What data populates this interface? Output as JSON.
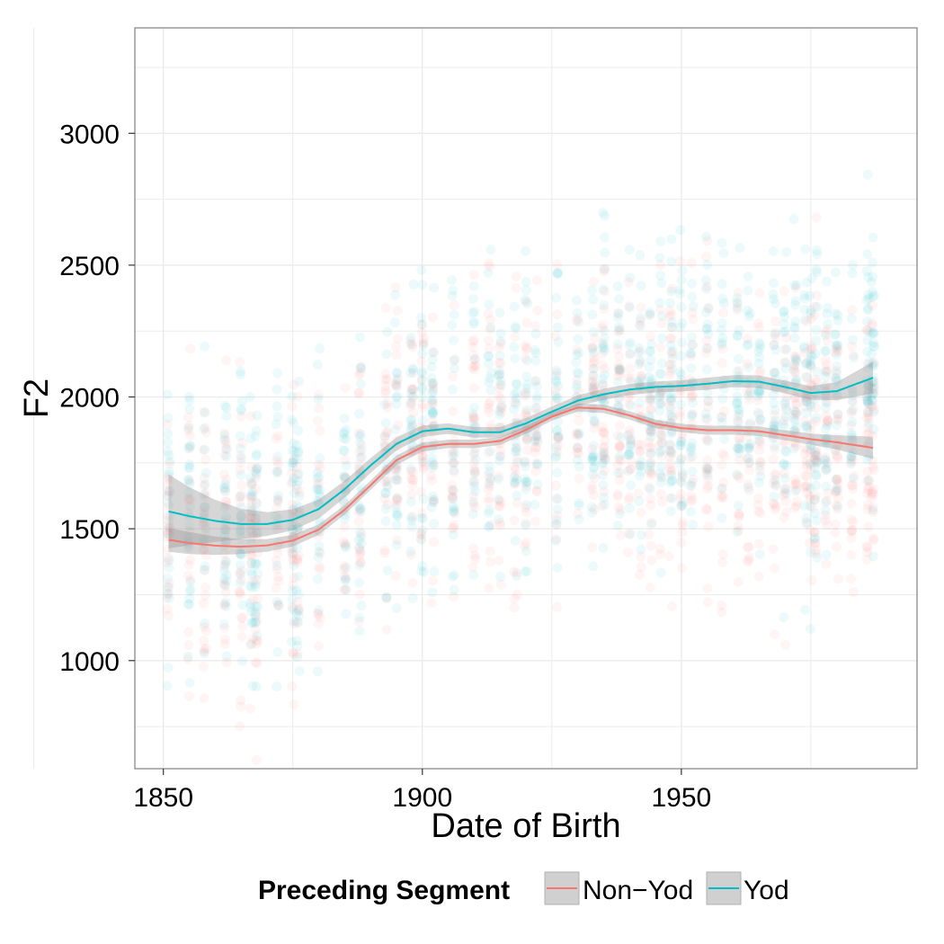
{
  "chart_data": {
    "type": "scatter",
    "xlabel": "Date of Birth",
    "ylabel": "F2",
    "xlim": [
      1844.5,
      1995.5
    ],
    "ylim": [
      590,
      3400
    ],
    "xticks": [
      1850,
      1900,
      1950
    ],
    "yticks": [
      1000,
      1500,
      2000,
      2500,
      3000
    ],
    "xtick_labels": [
      "1850",
      "1900",
      "1950"
    ],
    "ytick_labels": [
      "1000",
      "1500",
      "2000",
      "2500",
      "3000"
    ],
    "grid": true,
    "legend": {
      "title": "Preceding Segment",
      "position": "bottom",
      "entries": [
        "Non−Yod",
        "Yod"
      ]
    },
    "series": [
      {
        "name": "Non−Yod",
        "color": "#F8766D",
        "smooth": {
          "x": [
            1851,
            1855,
            1860,
            1865,
            1870,
            1875,
            1880,
            1885,
            1890,
            1895,
            1900,
            1905,
            1910,
            1915,
            1920,
            1925,
            1930,
            1935,
            1940,
            1945,
            1950,
            1955,
            1960,
            1965,
            1970,
            1975,
            1980,
            1987
          ],
          "y": [
            1458,
            1446,
            1436,
            1432,
            1437,
            1455,
            1497,
            1572,
            1665,
            1760,
            1810,
            1822,
            1822,
            1833,
            1875,
            1925,
            1960,
            1955,
            1930,
            1898,
            1882,
            1874,
            1874,
            1870,
            1855,
            1840,
            1828,
            1807
          ],
          "ci": [
            45,
            42,
            35,
            28,
            24,
            22,
            20,
            18,
            18,
            18,
            17,
            16,
            16,
            15,
            15,
            15,
            15,
            16,
            16,
            16,
            16,
            17,
            17,
            18,
            19,
            21,
            27,
            42
          ]
        }
      },
      {
        "name": "Yod",
        "color": "#00BFC4",
        "smooth": {
          "x": [
            1851,
            1855,
            1860,
            1865,
            1870,
            1875,
            1880,
            1885,
            1890,
            1895,
            1900,
            1905,
            1910,
            1915,
            1920,
            1925,
            1930,
            1935,
            1940,
            1945,
            1950,
            1955,
            1960,
            1965,
            1970,
            1975,
            1980,
            1987
          ],
          "y": [
            1566,
            1548,
            1530,
            1518,
            1518,
            1534,
            1575,
            1650,
            1740,
            1822,
            1870,
            1880,
            1866,
            1866,
            1900,
            1944,
            1986,
            2010,
            2028,
            2038,
            2042,
            2050,
            2060,
            2058,
            2038,
            2015,
            2022,
            2073
          ],
          "ci": [
            140,
            110,
            80,
            58,
            45,
            40,
            36,
            32,
            28,
            25,
            22,
            20,
            20,
            20,
            20,
            20,
            20,
            21,
            21,
            21,
            21,
            23,
            23,
            24,
            24,
            26,
            34,
            60
          ]
        }
      }
    ]
  },
  "colors": {
    "non_yod": "#F8766D",
    "yod": "#00BFC4",
    "ribbon": "#999999",
    "grid": "#ebebeb",
    "panel_border": "#7f7f7f"
  }
}
